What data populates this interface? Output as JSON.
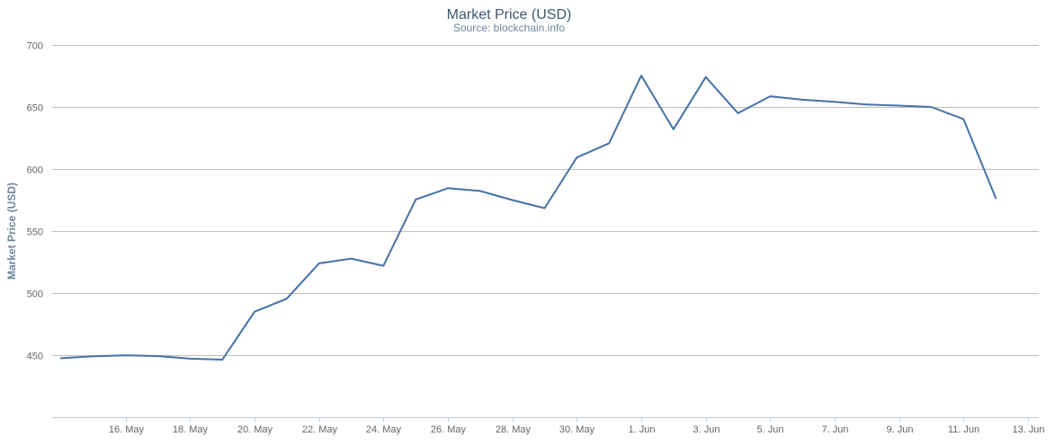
{
  "chart_data": {
    "type": "line",
    "title": "Market Price (USD)",
    "subtitle": "Source: blockchain.info",
    "xlabel": "",
    "ylabel": "Market Price (USD)",
    "ylim": [
      400,
      700
    ],
    "xlim": [
      "2014-05-14",
      "2014-06-13"
    ],
    "yticks": [
      450,
      500,
      550,
      600,
      650,
      700
    ],
    "xticks": [
      {
        "date": "2014-05-16",
        "label": "16. May"
      },
      {
        "date": "2014-05-18",
        "label": "18. May"
      },
      {
        "date": "2014-05-20",
        "label": "20. May"
      },
      {
        "date": "2014-05-22",
        "label": "22. May"
      },
      {
        "date": "2014-05-24",
        "label": "24. May"
      },
      {
        "date": "2014-05-26",
        "label": "26. May"
      },
      {
        "date": "2014-05-28",
        "label": "28. May"
      },
      {
        "date": "2014-05-30",
        "label": "30. May"
      },
      {
        "date": "2014-06-01",
        "label": "1. Jun"
      },
      {
        "date": "2014-06-03",
        "label": "3. Jun"
      },
      {
        "date": "2014-06-05",
        "label": "5. Jun"
      },
      {
        "date": "2014-06-07",
        "label": "7. Jun"
      },
      {
        "date": "2014-06-09",
        "label": "9. Jun"
      },
      {
        "date": "2014-06-11",
        "label": "11. Jun"
      },
      {
        "date": "2014-06-13",
        "label": "13. Jun"
      }
    ],
    "grid": true,
    "legend": "none",
    "series": [
      {
        "color": "#4572A7",
        "x": [
          "2014-05-14",
          "2014-05-15",
          "2014-05-16",
          "2014-05-17",
          "2014-05-18",
          "2014-05-19",
          "2014-05-20",
          "2014-05-21",
          "2014-05-22",
          "2014-05-23",
          "2014-05-24",
          "2014-05-25",
          "2014-05-26",
          "2014-05-27",
          "2014-05-28",
          "2014-05-29",
          "2014-05-30",
          "2014-05-31",
          "2014-06-01",
          "2014-06-02",
          "2014-06-03",
          "2014-06-04",
          "2014-06-05",
          "2014-06-06",
          "2014-06-07",
          "2014-06-08",
          "2014-06-09",
          "2014-06-10",
          "2014-06-11",
          "2014-06-12",
          "2014-06-13"
        ],
        "values": [
          447.5,
          449.1,
          449.9,
          449.3,
          447.2,
          446.4,
          485.0,
          495.5,
          524.0,
          527.8,
          522.0,
          575.4,
          584.6,
          582.3,
          575.0,
          568.5,
          609.3,
          620.8,
          675.3,
          632.0,
          674.1,
          645.0,
          658.6,
          655.9,
          654.2,
          652.0,
          651.1,
          650.0,
          640.2,
          576.5,
          null
        ]
      }
    ]
  }
}
